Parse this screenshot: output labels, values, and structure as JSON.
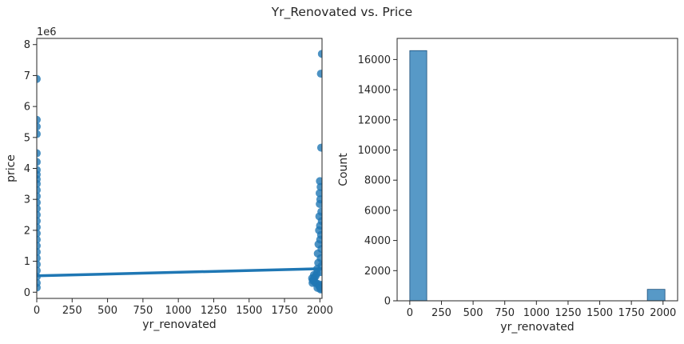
{
  "figure": {
    "suptitle": "Yr_Renovated vs. Price"
  },
  "chart_data": [
    {
      "type": "scatter",
      "title": "",
      "xlabel": "yr_renovated",
      "ylabel": "price",
      "y_offset_text": "1e6",
      "xlim": [
        0,
        2015
      ],
      "ylim": [
        -200000,
        8200000
      ],
      "xticks": [
        0,
        250,
        500,
        750,
        1000,
        1250,
        1500,
        1750,
        2000
      ],
      "yticks": [
        0,
        1000000,
        2000000,
        3000000,
        4000000,
        5000000,
        6000000,
        7000000,
        8000000
      ],
      "ytick_labels": [
        "0",
        "1",
        "2",
        "3",
        "4",
        "5",
        "6",
        "7",
        "8"
      ],
      "grid": false,
      "color": "#1f77b4",
      "series": [
        {
          "points": [
            [
              0,
              6890000
            ],
            [
              0,
              5570000
            ],
            [
              0,
              5350000
            ],
            [
              0,
              5110000
            ],
            [
              0,
              4490000
            ],
            [
              0,
              4210000
            ],
            [
              0,
              3950000
            ],
            [
              0,
              3800000
            ],
            [
              0,
              3650000
            ],
            [
              0,
              3500000
            ],
            [
              0,
              3300000
            ],
            [
              0,
              3100000
            ],
            [
              0,
              2900000
            ],
            [
              0,
              2700000
            ],
            [
              0,
              2500000
            ],
            [
              0,
              2300000
            ],
            [
              0,
              2100000
            ],
            [
              0,
              1900000
            ],
            [
              0,
              1700000
            ],
            [
              0,
              1500000
            ],
            [
              0,
              1300000
            ],
            [
              0,
              1100000
            ],
            [
              0,
              900000
            ],
            [
              0,
              700000
            ],
            [
              0,
              500000
            ],
            [
              0,
              300000
            ],
            [
              0,
              150000
            ],
            [
              2014,
              7700000
            ],
            [
              2007,
              7060000
            ],
            [
              2009,
              4670000
            ],
            [
              2000,
              3590000
            ],
            [
              2005,
              3400000
            ],
            [
              1998,
              3200000
            ],
            [
              2003,
              3000000
            ],
            [
              1999,
              2850000
            ],
            [
              2010,
              2600000
            ],
            [
              1996,
              2450000
            ],
            [
              2013,
              2300000
            ],
            [
              2001,
              2150000
            ],
            [
              1994,
              2000000
            ],
            [
              2008,
              1850000
            ],
            [
              2002,
              1700000
            ],
            [
              1990,
              1550000
            ],
            [
              2011,
              1400000
            ],
            [
              1985,
              1250000
            ],
            [
              2006,
              1100000
            ],
            [
              1988,
              950000
            ],
            [
              2012,
              850000
            ],
            [
              1980,
              750000
            ],
            [
              2004,
              650000
            ],
            [
              1978,
              600000
            ],
            [
              1970,
              520000
            ],
            [
              1960,
              470000
            ],
            [
              1955,
              410000
            ],
            [
              1945,
              450000
            ],
            [
              1950,
              380000
            ],
            [
              1965,
              320000
            ],
            [
              1975,
              290000
            ],
            [
              1990,
              260000
            ],
            [
              2014,
              240000
            ],
            [
              1995,
              200000
            ],
            [
              2000,
              170000
            ],
            [
              1983,
              140000
            ],
            [
              2009,
              110000
            ],
            [
              1958,
              560000
            ],
            [
              1948,
              300000
            ],
            [
              2005,
              90000
            ]
          ]
        }
      ],
      "regression_line": {
        "x": [
          0,
          2015
        ],
        "y": [
          530000,
          760000
        ]
      }
    },
    {
      "type": "bar",
      "title": "",
      "xlabel": "yr_renovated",
      "ylabel": "Count",
      "xlim": [
        -100,
        2115
      ],
      "ylim": [
        0,
        17400
      ],
      "xticks": [
        0,
        250,
        500,
        750,
        1000,
        1250,
        1500,
        1750,
        2000
      ],
      "yticks": [
        0,
        2000,
        4000,
        6000,
        8000,
        10000,
        12000,
        14000,
        16000
      ],
      "grid": false,
      "color": "#1f77b4",
      "bins": [
        {
          "x0": 0,
          "x1": 134,
          "count": 16590
        },
        {
          "x0": 134,
          "x1": 268,
          "count": 0
        },
        {
          "x0": 268,
          "x1": 402,
          "count": 0
        },
        {
          "x0": 402,
          "x1": 536,
          "count": 0
        },
        {
          "x0": 536,
          "x1": 670,
          "count": 0
        },
        {
          "x0": 670,
          "x1": 804,
          "count": 0
        },
        {
          "x0": 804,
          "x1": 938,
          "count": 0
        },
        {
          "x0": 938,
          "x1": 1072,
          "count": 0
        },
        {
          "x0": 1072,
          "x1": 1206,
          "count": 0
        },
        {
          "x0": 1206,
          "x1": 1340,
          "count": 0
        },
        {
          "x0": 1340,
          "x1": 1474,
          "count": 0
        },
        {
          "x0": 1474,
          "x1": 1608,
          "count": 0
        },
        {
          "x0": 1608,
          "x1": 1742,
          "count": 0
        },
        {
          "x0": 1742,
          "x1": 1876,
          "count": 0
        },
        {
          "x0": 1876,
          "x1": 2015,
          "count": 760
        }
      ]
    }
  ]
}
